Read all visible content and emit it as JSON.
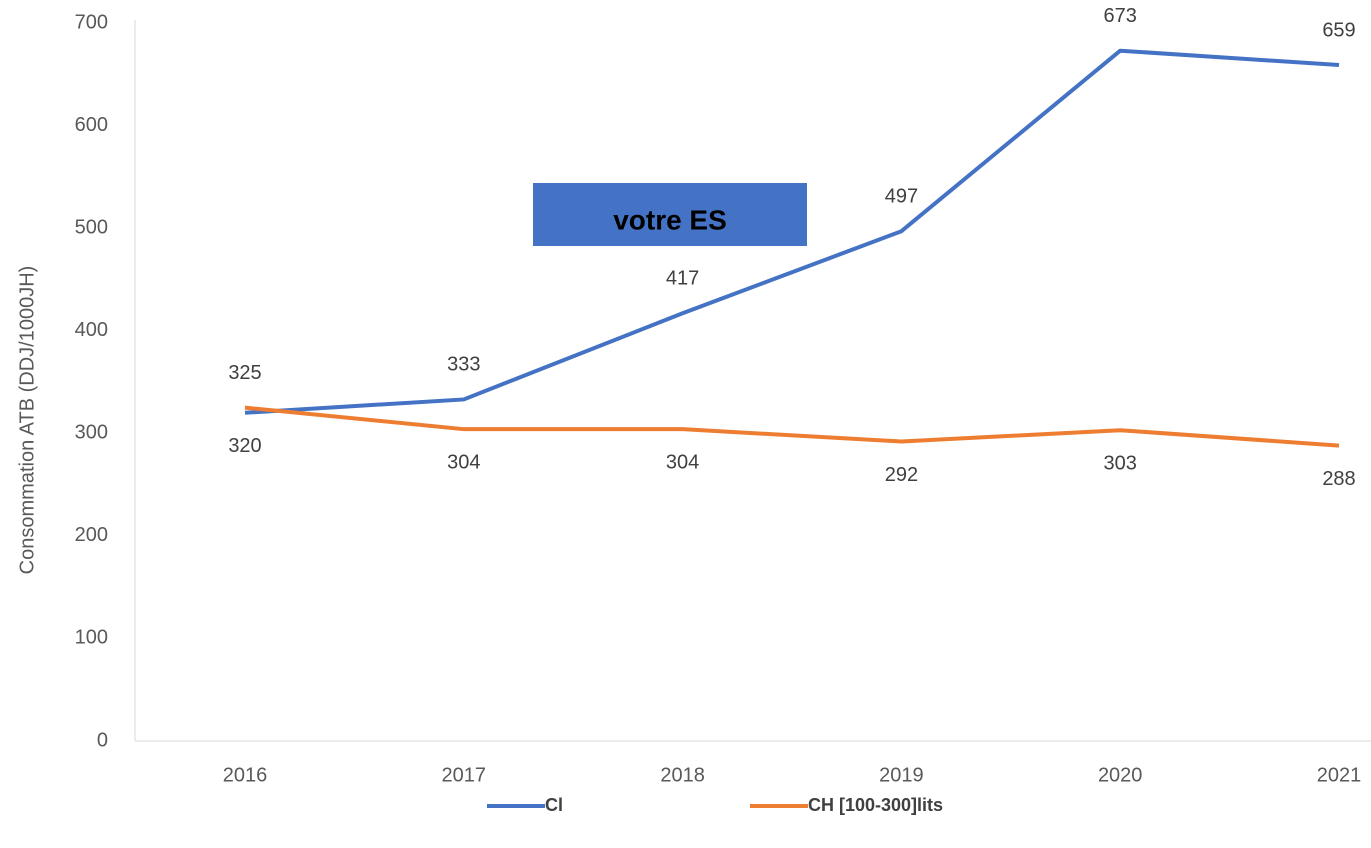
{
  "chart_data": {
    "type": "line",
    "y_label": "Consommation ATB (DDJ/1000JH)",
    "annotation": "votre ES",
    "categories": [
      "2016",
      "2017",
      "2018",
      "2019",
      "2020",
      "2021"
    ],
    "series": [
      {
        "name": "Cl",
        "color": "#4472c4",
        "values": [
          320,
          333,
          417,
          497,
          673,
          659
        ]
      },
      {
        "name": "CH [100-300]lits",
        "color": "#ed7d31",
        "values": [
          325,
          304,
          304,
          292,
          303,
          288
        ]
      }
    ],
    "ylim": [
      0,
      700
    ],
    "yticks": [
      0,
      100,
      200,
      300,
      400,
      500,
      600,
      700
    ],
    "grid": false,
    "legend": "bottom"
  }
}
